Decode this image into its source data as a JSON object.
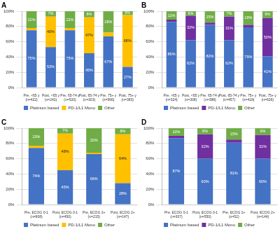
{
  "chart_data": [
    {
      "type": "bar",
      "title": "A",
      "stacked": true,
      "data_labels": true,
      "legend": "bottom",
      "grid": true,
      "categories": [
        "Pre, <65 y (n=422)",
        "Post, <65 y (n=242)",
        "Pre, 65-74 y (n=520)",
        "Post, 65-74 y (n=303)",
        "Pre, 75+ y (n=566)",
        "Post, 75+ y (n=383)"
      ],
      "series": [
        {
          "name": "Platinum based",
          "color": "#4472c4",
          "values": [
            75,
            53,
            75,
            45,
            67,
            27
          ],
          "value_labels": [
            "75%",
            "53%",
            "75%",
            "45%",
            "67%",
            "27%"
          ]
        },
        {
          "name": "PD-1/L1 Mono",
          "color": "#ffc000",
          "values": [
            3,
            40,
            3,
            47,
            5,
            68
          ],
          "value_labels": [
            null,
            "40%",
            null,
            "47%",
            null,
            "68%"
          ]
        },
        {
          "name": "Other",
          "color": "#70ad47",
          "values": [
            22,
            7,
            22,
            8,
            28,
            5
          ],
          "value_labels": [
            "22%",
            "7%",
            "22%",
            "8%",
            "28%",
            "5%"
          ]
        }
      ],
      "ylim": [
        0,
        100
      ],
      "yticks": [
        {
          "value": 0,
          "label": "0%"
        },
        {
          "value": 20,
          "label": "20%"
        },
        {
          "value": 40,
          "label": "40%"
        },
        {
          "value": 60,
          "label": "60%"
        },
        {
          "value": 80,
          "label": "80%"
        },
        {
          "value": 100,
          "label": "100%"
        }
      ]
    },
    {
      "type": "bar",
      "title": "B",
      "stacked": true,
      "data_labels": true,
      "legend": "bottom",
      "grid": true,
      "categories": [
        "Pre, <65 y (n=324)",
        "Post, <65 y (n=308)",
        "Pre, 65-74 y (n=388)",
        "Post, 65-74 y (n=457)",
        "Pre, 75+ y (n=418)",
        "Post, 75+ y (n=626)"
      ],
      "series": [
        {
          "name": "Platinum based",
          "color": "#4472c4",
          "values": [
            86,
            62,
            82,
            62,
            79,
            41
          ],
          "value_labels": [
            "86%",
            "62%",
            "82%",
            "62%",
            "79%",
            "41%"
          ]
        },
        {
          "name": "PD-1/L1 Mono",
          "color": "#7030a0",
          "values": [
            3,
            32,
            3,
            31,
            3,
            50
          ],
          "value_labels": [
            null,
            "32%",
            null,
            "31%",
            null,
            "50%"
          ]
        },
        {
          "name": "Other",
          "color": "#70ad47",
          "values": [
            11,
            6,
            15,
            7,
            18,
            9
          ],
          "value_labels": [
            "11%",
            "6%",
            "15%",
            "7%",
            "18%",
            "9%"
          ]
        }
      ],
      "ylim": [
        0,
        100
      ],
      "yticks": [
        {
          "value": 0,
          "label": "0%"
        },
        {
          "value": 20,
          "label": "20%"
        },
        {
          "value": 40,
          "label": "40%"
        },
        {
          "value": 60,
          "label": "60%"
        },
        {
          "value": 80,
          "label": "80%"
        },
        {
          "value": 100,
          "label": "100%"
        }
      ]
    },
    {
      "type": "bar",
      "title": "C",
      "stacked": true,
      "data_labels": true,
      "legend": "bottom",
      "grid": true,
      "categories": [
        "Pre, ECOG 0-1 (n=908)",
        "Post, ECOG 0-1 (n=450)",
        "Pre, ECOG 2+ (n=215)",
        "Post, ECOG 2+ (n=147)"
      ],
      "series": [
        {
          "name": "Platinum based",
          "color": "#4472c4",
          "values": [
            74,
            45,
            66,
            28
          ],
          "value_labels": [
            "74%",
            "45%",
            "66%",
            "28%"
          ]
        },
        {
          "name": "PD-1/L1 Mono",
          "color": "#ffc000",
          "values": [
            3,
            48,
            2,
            64
          ],
          "value_labels": [
            null,
            "48%",
            null,
            "64%"
          ]
        },
        {
          "name": "Other",
          "color": "#70ad47",
          "values": [
            23,
            7,
            32,
            8
          ],
          "value_labels": [
            "23%",
            "7%",
            "32%",
            "8%"
          ]
        }
      ],
      "ylim": [
        0,
        100
      ],
      "yticks": [
        {
          "value": 0,
          "label": "0%"
        },
        {
          "value": 20,
          "label": "20%"
        },
        {
          "value": 40,
          "label": "40%"
        },
        {
          "value": 60,
          "label": "60%"
        },
        {
          "value": 80,
          "label": "80%"
        },
        {
          "value": 100,
          "label": "100%"
        }
      ]
    },
    {
      "type": "bar",
      "title": "D",
      "stacked": true,
      "data_labels": true,
      "legend": "bottom",
      "grid": true,
      "categories": [
        "Pre, ECOG 0-1 (n=307)",
        "Post, ECOG 0-1 (n=550)",
        "Pre, ECOG 2+ (n=52)",
        "Post, ECOG 2+ (n=144)"
      ],
      "series": [
        {
          "name": "Platinum based",
          "color": "#4472c4",
          "values": [
            87,
            60,
            81,
            60
          ],
          "value_labels": [
            "87%",
            "60%",
            "81%",
            "60%"
          ]
        },
        {
          "name": "PD-1/L1 Mono",
          "color": "#7030a0",
          "values": [
            3,
            32,
            4,
            31
          ],
          "value_labels": [
            null,
            "32%",
            null,
            "31%"
          ]
        },
        {
          "name": "Other",
          "color": "#70ad47",
          "values": [
            10,
            8,
            15,
            9
          ],
          "value_labels": [
            "10%",
            "8%",
            "15%",
            "9%"
          ]
        }
      ],
      "ylim": [
        0,
        100
      ],
      "yticks": [
        {
          "value": 0,
          "label": "0%"
        },
        {
          "value": 20,
          "label": "20%"
        },
        {
          "value": 40,
          "label": "40%"
        },
        {
          "value": 60,
          "label": "60%"
        },
        {
          "value": 80,
          "label": "80%"
        },
        {
          "value": 100,
          "label": "100%"
        }
      ]
    }
  ]
}
